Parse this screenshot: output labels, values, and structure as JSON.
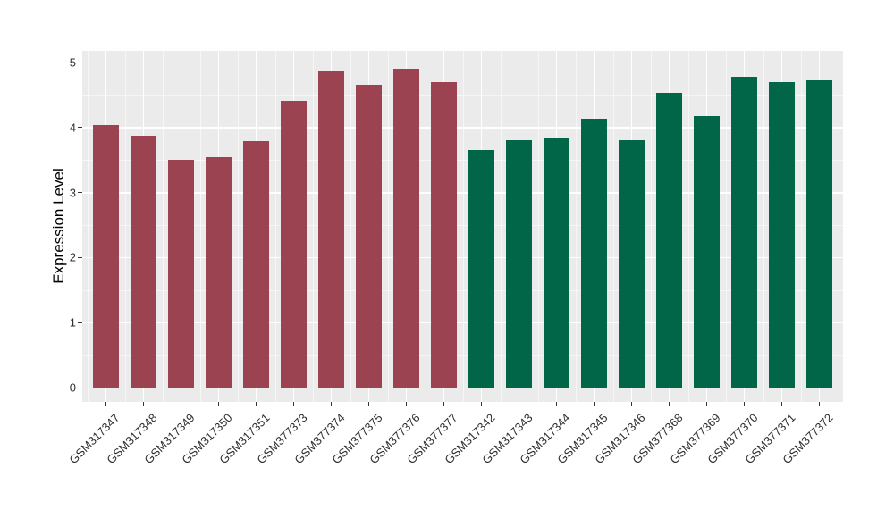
{
  "chart_data": {
    "type": "bar",
    "title": "",
    "xlabel": "",
    "ylabel": "Expression Level",
    "ylim": [
      0,
      5
    ],
    "ytick_labels": [
      "0",
      "1",
      "2",
      "3",
      "4",
      "5"
    ],
    "ytick_values": [
      0,
      1,
      2,
      3,
      4,
      5
    ],
    "legend_position": "none",
    "grid": "white major gridlines at integers and category centers, faint minor gridlines at halves and category midpoints, on grey panel",
    "panel_background": "#EBEBEB",
    "gridline_color": "#FFFFFF",
    "series": [
      {
        "name": "maroon-group",
        "color": "#9B4351",
        "categories": [
          "GSM317347",
          "GSM317348",
          "GSM317349",
          "GSM317350",
          "GSM317351",
          "GSM377373",
          "GSM377374",
          "GSM377375",
          "GSM377376",
          "GSM377377"
        ],
        "values": [
          4.04,
          3.88,
          3.5,
          3.55,
          3.79,
          4.41,
          4.86,
          4.66,
          4.91,
          4.7
        ]
      },
      {
        "name": "green-group",
        "color": "#006647",
        "categories": [
          "GSM317342",
          "GSM317343",
          "GSM317344",
          "GSM317345",
          "GSM317346",
          "GSM377368",
          "GSM377369",
          "GSM377370",
          "GSM377371",
          "GSM377372"
        ],
        "values": [
          3.66,
          3.81,
          3.85,
          4.13,
          3.8,
          4.53,
          4.18,
          4.78,
          4.7,
          4.72
        ]
      }
    ]
  }
}
